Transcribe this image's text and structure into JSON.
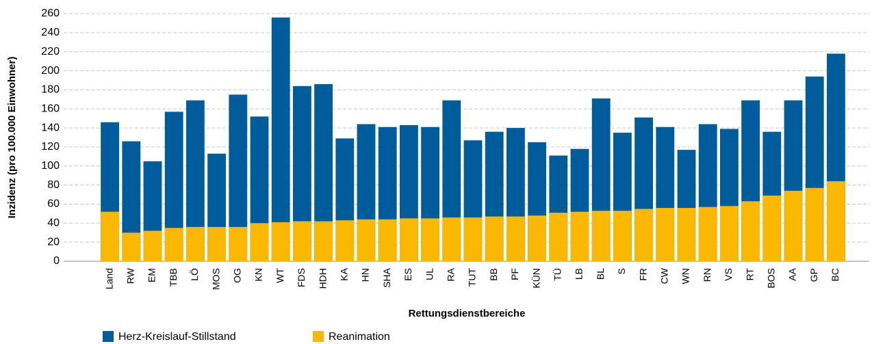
{
  "chart_data": {
    "type": "bar",
    "x_label": "Rettungsdienstbereiche",
    "y_label": "Inzidenz (pro 100.000 Einwohner)",
    "categories": [
      "Land",
      "RW",
      "EM",
      "TBB",
      "LÖ",
      "MOS",
      "OG",
      "KN",
      "WT",
      "FDS",
      "HDH",
      "KA",
      "HN",
      "SHA",
      "ES",
      "UL",
      "RA",
      "TUT",
      "BB",
      "PF",
      "KÜN",
      "TÜ",
      "LB",
      "BL",
      "S",
      "FR",
      "CW",
      "WN",
      "RN",
      "VS",
      "RT",
      "BOS",
      "AA",
      "GP",
      "BC"
    ],
    "series": [
      {
        "name": "Herz-Kreislauf-Stillstand",
        "color": "#005c9a",
        "values": [
          146,
          126,
          105,
          157,
          169,
          113,
          175,
          152,
          256,
          184,
          186,
          129,
          144,
          141,
          143,
          141,
          169,
          127,
          136,
          140,
          125,
          111,
          118,
          171,
          135,
          151,
          141,
          117,
          144,
          139,
          169,
          136,
          169,
          194,
          218
        ]
      },
      {
        "name": "Reanimation",
        "color": "#fbb800",
        "values": [
          52,
          30,
          32,
          35,
          36,
          36,
          36,
          40,
          41,
          42,
          42,
          43,
          44,
          44,
          45,
          45,
          46,
          46,
          47,
          47,
          48,
          51,
          52,
          53,
          53,
          55,
          56,
          56,
          57,
          58,
          63,
          69,
          74,
          77,
          84
        ]
      }
    ],
    "ylim": [
      0,
      260
    ],
    "yticks": [
      0,
      20,
      40,
      60,
      80,
      100,
      120,
      140,
      160,
      180,
      200,
      220,
      240,
      260
    ],
    "grid": true
  }
}
